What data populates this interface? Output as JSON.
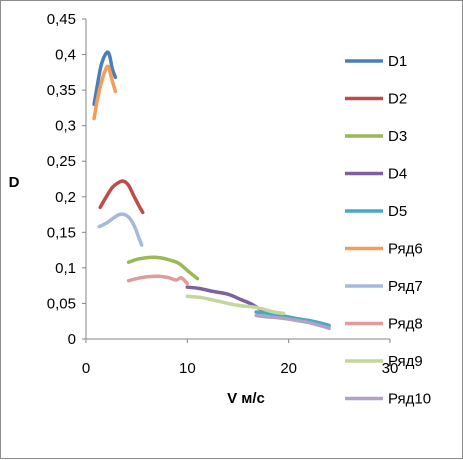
{
  "chart_data": {
    "type": "line",
    "xlabel": "V м/с",
    "ylabel": "D",
    "xlim": [
      0,
      30
    ],
    "ylim": [
      0,
      0.45
    ],
    "grid": false,
    "legend_position": "right",
    "x_ticks": [
      "0",
      "10",
      "20",
      "30"
    ],
    "y_ticks": [
      "0",
      "0,05",
      "0,1",
      "0,15",
      "0,2",
      "0,25",
      "0,3",
      "0,35",
      "0,4",
      "0,45"
    ],
    "series": [
      {
        "name": "D1",
        "color": "#4a7ebb",
        "points": [
          [
            0.8,
            0.33
          ],
          [
            1.1,
            0.355
          ],
          [
            1.5,
            0.385
          ],
          [
            2.0,
            0.402
          ],
          [
            2.3,
            0.4
          ],
          [
            2.6,
            0.38
          ],
          [
            2.9,
            0.368
          ]
        ]
      },
      {
        "name": "D2",
        "color": "#be4b48",
        "points": [
          [
            1.4,
            0.185
          ],
          [
            2.0,
            0.2
          ],
          [
            2.6,
            0.213
          ],
          [
            3.2,
            0.22
          ],
          [
            3.7,
            0.222
          ],
          [
            4.2,
            0.216
          ],
          [
            4.7,
            0.202
          ],
          [
            5.2,
            0.188
          ],
          [
            5.6,
            0.178
          ]
        ]
      },
      {
        "name": "D3",
        "color": "#98b954",
        "points": [
          [
            4.2,
            0.108
          ],
          [
            5.0,
            0.112
          ],
          [
            5.8,
            0.114
          ],
          [
            6.6,
            0.115
          ],
          [
            7.4,
            0.114
          ],
          [
            8.3,
            0.111
          ],
          [
            9.2,
            0.106
          ],
          [
            10.2,
            0.094
          ],
          [
            11.0,
            0.085
          ]
        ]
      },
      {
        "name": "D4",
        "color": "#7d60a0",
        "points": [
          [
            10.0,
            0.073
          ],
          [
            11.2,
            0.071
          ],
          [
            12.5,
            0.067
          ],
          [
            14.0,
            0.063
          ],
          [
            15.2,
            0.056
          ],
          [
            16.2,
            0.05
          ],
          [
            17.2,
            0.042
          ],
          [
            18.2,
            0.037
          ]
        ]
      },
      {
        "name": "D5",
        "color": "#46aac5",
        "points": [
          [
            16.8,
            0.038
          ],
          [
            18.0,
            0.036
          ],
          [
            19.3,
            0.033
          ],
          [
            20.7,
            0.029
          ],
          [
            22.0,
            0.026
          ],
          [
            23.3,
            0.022
          ],
          [
            24.0,
            0.019
          ]
        ]
      },
      {
        "name": "Ряд6",
        "color": "#f59d56",
        "points": [
          [
            0.8,
            0.31
          ],
          [
            1.1,
            0.335
          ],
          [
            1.5,
            0.36
          ],
          [
            1.9,
            0.378
          ],
          [
            2.2,
            0.383
          ],
          [
            2.5,
            0.368
          ],
          [
            2.9,
            0.348
          ]
        ]
      },
      {
        "name": "Ряд7",
        "color": "#a5b8e0",
        "points": [
          [
            1.3,
            0.158
          ],
          [
            2.0,
            0.163
          ],
          [
            2.7,
            0.17
          ],
          [
            3.3,
            0.175
          ],
          [
            3.8,
            0.175
          ],
          [
            4.3,
            0.17
          ],
          [
            4.8,
            0.158
          ],
          [
            5.2,
            0.143
          ],
          [
            5.5,
            0.132
          ]
        ]
      },
      {
        "name": "Ряд8",
        "color": "#e09b9b",
        "points": [
          [
            4.2,
            0.082
          ],
          [
            5.0,
            0.085
          ],
          [
            5.8,
            0.087
          ],
          [
            6.6,
            0.088
          ],
          [
            7.4,
            0.088
          ],
          [
            8.2,
            0.086
          ],
          [
            8.9,
            0.083
          ],
          [
            9.4,
            0.086
          ],
          [
            10.0,
            0.078
          ]
        ]
      },
      {
        "name": "Ряд9",
        "color": "#c3d69b",
        "points": [
          [
            10.0,
            0.06
          ],
          [
            11.5,
            0.058
          ],
          [
            12.8,
            0.054
          ],
          [
            14.0,
            0.05
          ],
          [
            15.2,
            0.047
          ],
          [
            16.5,
            0.045
          ],
          [
            17.5,
            0.042
          ],
          [
            18.5,
            0.038
          ],
          [
            19.5,
            0.036
          ]
        ]
      },
      {
        "name": "Ряд10",
        "color": "#b3a2c7",
        "points": [
          [
            16.8,
            0.033
          ],
          [
            18.0,
            0.031
          ],
          [
            19.5,
            0.029
          ],
          [
            20.8,
            0.026
          ],
          [
            22.0,
            0.023
          ],
          [
            23.3,
            0.018
          ],
          [
            24.0,
            0.015
          ]
        ]
      }
    ]
  }
}
